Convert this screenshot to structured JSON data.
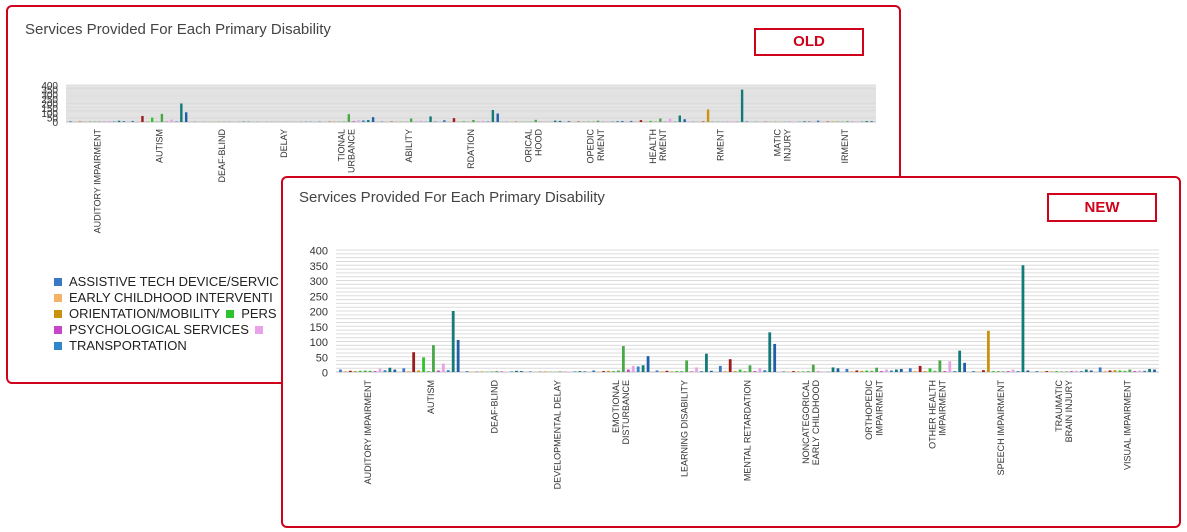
{
  "old_panel": {
    "title": "Services Provided For Each Primary Disability",
    "badge": "OLD"
  },
  "new_panel": {
    "title": "Services Provided For Each Primary Disability",
    "badge": "NEW"
  },
  "legend": {
    "rows": [
      [
        {
          "label": "ASSISTIVE TECH DEVICE/SERVIC",
          "color": "#3a78c3"
        }
      ],
      [
        {
          "label": "EARLY CHILDHOOD INTERVENTI",
          "color": "#f5b266"
        }
      ],
      [
        {
          "label": "ORIENTATION/MOBILITY",
          "color": "#c9930e"
        },
        {
          "label": "PERS",
          "color": "#2ec42e"
        }
      ],
      [
        {
          "label": "PSYCHOLOGICAL SERVICES",
          "color": "#c844c8"
        },
        {
          "label": "",
          "color": "#e8a3e8"
        }
      ],
      [
        {
          "label": "TRANSPORTATION",
          "color": "#2f86c8"
        }
      ]
    ]
  },
  "chart_data": [
    {
      "type": "bar",
      "title": "Services Provided For Each Primary Disability",
      "ylim": [
        0,
        400
      ],
      "yticks": [
        "400",
        "350",
        "300",
        "250",
        "200",
        "150",
        "100",
        "50",
        "0"
      ],
      "grid": true,
      "categories": [
        "AUDITORY IMPAIRMENT",
        "AUTISM",
        "DEAF-BLIND",
        "DELAY",
        "EMOTIONAL DISTURBANCE",
        "LEARNING DISABILITY",
        "MENTAL RETARDATION",
        "NONCATEGORICAL EARLY CHILDHOOD",
        "ORTHOPEDIC IMPAIRMENT",
        "OTHER HEALTH IMPAIRMENT",
        "SPEECH IMPAIRMENT",
        "TRAUMATIC BRAIN INJURY",
        "VISUAL IMPAIRMENT"
      ],
      "category_labels": [
        [
          "AUDITORY IMPAIRMENT"
        ],
        [
          "AUTISM"
        ],
        [
          "DEAF-BLIND"
        ],
        [
          "DELAY"
        ],
        [
          "TIONAL",
          "URBANCE"
        ],
        [
          "ABILITY"
        ],
        [
          "RDATION"
        ],
        [
          "ORICAL",
          "HOOD"
        ],
        [
          "OPEDIC",
          "RMENT"
        ],
        [
          "HEALTH",
          "RMENT"
        ],
        [
          "RMENT"
        ],
        [
          "MATIC",
          "INJURY"
        ],
        [
          "IRMENT"
        ]
      ],
      "bar_colors": [
        "#3a78c3",
        "#f5b266",
        "#9e1b1b",
        "#c9930e",
        "#2ec42e",
        "#5ab04a",
        "#4aa84a",
        "#c844c8",
        "#e8a3e8",
        "#2f86c8",
        "#137a7a",
        "#1f5fa8"
      ],
      "values": [
        [
          8,
          3,
          4,
          3,
          4,
          5,
          4,
          3,
          11,
          6,
          14,
          8
        ],
        [
          12,
          4,
          65,
          5,
          48,
          3,
          88,
          5,
          28,
          6,
          200,
          105
        ],
        [
          3,
          2,
          1,
          2,
          1,
          2,
          3,
          2,
          1,
          2,
          4,
          3
        ],
        [
          2,
          1,
          1,
          2,
          1,
          1,
          2,
          1,
          1,
          2,
          3,
          2
        ],
        [
          5,
          2,
          3,
          4,
          3,
          5,
          85,
          8,
          20,
          18,
          22,
          52
        ],
        [
          5,
          3,
          4,
          2,
          3,
          3,
          38,
          2,
          15,
          3,
          60,
          4
        ],
        [
          20,
          4,
          42,
          3,
          8,
          3,
          22,
          3,
          12,
          6,
          130,
          92
        ],
        [
          2,
          2,
          3,
          2,
          2,
          3,
          24,
          2,
          1,
          1,
          15,
          12
        ],
        [
          10,
          3,
          5,
          4,
          5,
          4,
          14,
          3,
          8,
          5,
          8,
          10
        ],
        [
          12,
          4,
          20,
          3,
          12,
          4,
          38,
          3,
          35,
          3,
          70,
          30
        ],
        [
          3,
          2,
          6,
          135,
          3,
          3,
          2,
          3,
          8,
          3,
          350,
          5
        ],
        [
          3,
          2,
          3,
          2,
          3,
          2,
          2,
          3,
          4,
          3,
          8,
          5
        ],
        [
          15,
          4,
          5,
          6,
          5,
          4,
          8,
          3,
          5,
          4,
          10,
          8
        ]
      ]
    },
    {
      "type": "bar",
      "title": "Services Provided For Each Primary Disability",
      "ylim": [
        0,
        400
      ],
      "yticks": [
        "400",
        "350",
        "300",
        "250",
        "200",
        "150",
        "100",
        "50",
        "0"
      ],
      "grid": true,
      "categories": [
        "AUDITORY IMPAIRMENT",
        "AUTISM",
        "DEAF-BLIND",
        "DEVELOPMENTAL DELAY",
        "EMOTIONAL DISTURBANCE",
        "LEARNING DISABILITY",
        "MENTAL RETARDATION",
        "NONCATEGORICAL EARLY CHILDHOOD",
        "ORTHOPEDIC IMPAIRMENT",
        "OTHER HEALTH IMPAIRMENT",
        "SPEECH IMPAIRMENT",
        "TRAUMATIC BRAIN INJURY",
        "VISUAL IMPAIRMENT"
      ],
      "category_labels": [
        [
          "AUDITORY IMPAIRMENT"
        ],
        [
          "AUTISM"
        ],
        [
          "DEAF-BLIND"
        ],
        [
          "DEVELOPMENTAL DELAY"
        ],
        [
          "EMOTIONAL",
          "DISTURBANCE"
        ],
        [
          "LEARNING DISABILITY"
        ],
        [
          "MENTAL RETARDATION"
        ],
        [
          "NONCATEGORICAL",
          "EARLY CHILDHOOD"
        ],
        [
          "ORTHOPEDIC",
          "IMPAIRMENT"
        ],
        [
          "OTHER HEALTH",
          "IMPAIRMENT"
        ],
        [
          "SPEECH IMPAIRMENT"
        ],
        [
          "TRAUMATIC",
          "BRAIN INJURY"
        ],
        [
          "VISUAL IMPAIRMENT"
        ]
      ],
      "bar_colors": [
        "#3a78c3",
        "#f5b266",
        "#9e1b1b",
        "#c9930e",
        "#2ec42e",
        "#5ab04a",
        "#4aa84a",
        "#c844c8",
        "#e8a3e8",
        "#2f86c8",
        "#137a7a",
        "#1f5fa8"
      ],
      "values": [
        [
          8,
          3,
          4,
          3,
          4,
          5,
          4,
          3,
          11,
          6,
          14,
          8
        ],
        [
          12,
          4,
          65,
          5,
          48,
          3,
          88,
          5,
          28,
          6,
          200,
          105
        ],
        [
          3,
          2,
          1,
          2,
          1,
          2,
          3,
          2,
          1,
          2,
          4,
          3
        ],
        [
          2,
          1,
          1,
          2,
          1,
          1,
          2,
          1,
          1,
          2,
          3,
          2
        ],
        [
          5,
          2,
          3,
          4,
          3,
          5,
          85,
          8,
          20,
          18,
          22,
          52
        ],
        [
          5,
          3,
          4,
          2,
          3,
          3,
          38,
          2,
          15,
          3,
          60,
          4
        ],
        [
          20,
          4,
          42,
          3,
          8,
          3,
          22,
          3,
          12,
          6,
          130,
          92
        ],
        [
          2,
          2,
          3,
          2,
          2,
          3,
          24,
          2,
          1,
          1,
          15,
          12
        ],
        [
          10,
          3,
          5,
          4,
          5,
          4,
          14,
          3,
          8,
          5,
          8,
          10
        ],
        [
          12,
          4,
          20,
          3,
          12,
          4,
          38,
          3,
          35,
          3,
          70,
          30
        ],
        [
          3,
          2,
          6,
          135,
          3,
          3,
          2,
          3,
          8,
          3,
          350,
          5
        ],
        [
          3,
          2,
          3,
          2,
          3,
          2,
          2,
          3,
          4,
          3,
          8,
          5
        ],
        [
          15,
          4,
          5,
          6,
          5,
          4,
          8,
          3,
          5,
          4,
          10,
          8
        ]
      ]
    }
  ]
}
